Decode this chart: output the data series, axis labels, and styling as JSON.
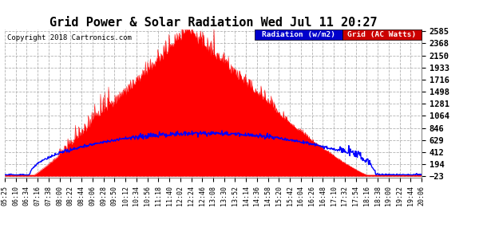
{
  "title": "Grid Power & Solar Radiation Wed Jul 11 20:27",
  "copyright": "Copyright 2018 Cartronics.com",
  "legend_labels": [
    "Radiation (w/m2)",
    "Grid (AC Watts)"
  ],
  "legend_bg_colors": [
    "#0000cc",
    "#cc0000"
  ],
  "yticks_right": [
    -23.0,
    194.3,
    411.7,
    629.0,
    846.4,
    1063.7,
    1281.1,
    1498.4,
    1715.8,
    1933.1,
    2150.5,
    2367.8,
    2585.2
  ],
  "ymin": -23.0,
  "ymax": 2585.2,
  "bg_color": "#ffffff",
  "plot_bg_color": "#ffffff",
  "grid_color": "#aaaaaa",
  "red_fill_color": "#ff0000",
  "blue_line_color": "#0000ff",
  "time_labels": [
    "05:25",
    "06:10",
    "06:34",
    "07:16",
    "07:38",
    "08:00",
    "08:22",
    "08:44",
    "09:06",
    "09:28",
    "09:50",
    "10:12",
    "10:34",
    "10:56",
    "11:18",
    "11:40",
    "12:02",
    "12:24",
    "12:46",
    "13:08",
    "13:30",
    "13:52",
    "14:14",
    "14:36",
    "14:58",
    "15:20",
    "15:42",
    "16:04",
    "16:26",
    "16:48",
    "17:10",
    "17:32",
    "17:54",
    "18:16",
    "18:38",
    "19:00",
    "19:22",
    "19:44",
    "20:06"
  ],
  "n_points": 780,
  "solar_peak": 2500,
  "radiation_peak": 750
}
